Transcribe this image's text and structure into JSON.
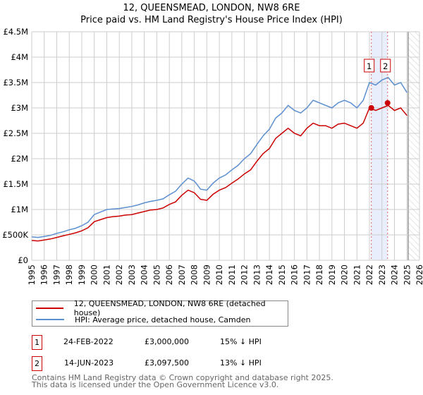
{
  "title_line1": "12, QUEENSMEAD, LONDON, NW8 6RE",
  "title_line2": "Price paid vs. HM Land Registry's House Price Index (HPI)",
  "colors": {
    "property": "#cc0000",
    "hpi": "#5b8fd0",
    "band": "#e8eefb",
    "marker": "#e06060"
  },
  "chart_data": {
    "type": "line",
    "title": "Price paid vs. HM Land Registry's House Price Index (HPI)",
    "xlim": [
      1995,
      2026
    ],
    "ylim": [
      0,
      4500000
    ],
    "y_ticks": [
      0,
      500000,
      1000000,
      1500000,
      2000000,
      2500000,
      3000000,
      3500000,
      4000000,
      4500000
    ],
    "y_tick_labels": [
      "£0",
      "£500K",
      "£1M",
      "£1.5M",
      "£2M",
      "£2.5M",
      "£3M",
      "£3.5M",
      "£4M",
      "£4.5M"
    ],
    "x_ticks": [
      1995,
      1996,
      1997,
      1998,
      1999,
      2000,
      2001,
      2002,
      2003,
      2004,
      2005,
      2006,
      2007,
      2008,
      2009,
      2010,
      2011,
      2012,
      2013,
      2014,
      2015,
      2016,
      2017,
      2018,
      2019,
      2020,
      2021,
      2022,
      2023,
      2024,
      2025,
      2026
    ],
    "grid": true,
    "x": [
      1995,
      1995.5,
      1996,
      1996.5,
      1997,
      1997.5,
      1998,
      1998.5,
      1999,
      1999.5,
      2000,
      2000.5,
      2001,
      2001.5,
      2002,
      2002.5,
      2003,
      2003.5,
      2004,
      2004.5,
      2005,
      2005.5,
      2006,
      2006.5,
      2007,
      2007.5,
      2008,
      2008.5,
      2009,
      2009.5,
      2010,
      2010.5,
      2011,
      2011.5,
      2012,
      2012.5,
      2013,
      2013.5,
      2014,
      2014.5,
      2015,
      2015.5,
      2016,
      2016.5,
      2017,
      2017.5,
      2018,
      2018.5,
      2019,
      2019.5,
      2020,
      2020.5,
      2021,
      2021.5,
      2022,
      2022.5,
      2023,
      2023.5,
      2024,
      2024.5,
      2025
    ],
    "series": [
      {
        "name": "12, QUEENSMEAD, LONDON, NW8 6RE (detached house)",
        "values": [
          390000,
          380000,
          400000,
          420000,
          450000,
          480000,
          510000,
          540000,
          580000,
          640000,
          760000,
          800000,
          840000,
          860000,
          870000,
          890000,
          900000,
          930000,
          960000,
          990000,
          1000000,
          1030000,
          1100000,
          1150000,
          1280000,
          1380000,
          1330000,
          1200000,
          1180000,
          1300000,
          1380000,
          1430000,
          1520000,
          1600000,
          1700000,
          1780000,
          1950000,
          2100000,
          2200000,
          2400000,
          2500000,
          2600000,
          2500000,
          2450000,
          2600000,
          2700000,
          2650000,
          2650000,
          2600000,
          2680000,
          2700000,
          2650000,
          2600000,
          2700000,
          3000000,
          2950000,
          3000000,
          3050000,
          2950000,
          3000000,
          2850000
        ]
      },
      {
        "name": "HPI: Average price, detached house, Camden",
        "values": [
          460000,
          450000,
          470000,
          490000,
          530000,
          560000,
          600000,
          630000,
          680000,
          750000,
          900000,
          950000,
          1000000,
          1010000,
          1020000,
          1040000,
          1060000,
          1090000,
          1130000,
          1160000,
          1180000,
          1210000,
          1290000,
          1360000,
          1500000,
          1620000,
          1560000,
          1400000,
          1380000,
          1520000,
          1620000,
          1680000,
          1780000,
          1870000,
          2000000,
          2100000,
          2280000,
          2450000,
          2580000,
          2800000,
          2900000,
          3050000,
          2950000,
          2900000,
          3000000,
          3150000,
          3100000,
          3050000,
          3000000,
          3100000,
          3150000,
          3100000,
          3000000,
          3150000,
          3500000,
          3450000,
          3550000,
          3600000,
          3450000,
          3500000,
          3300000
        ]
      }
    ],
    "annotations": [
      {
        "label": "1",
        "x": 2022.15,
        "y": 3000000
      },
      {
        "label": "2",
        "x": 2023.45,
        "y": 3097500
      }
    ],
    "shaded_band": [
      2022.15,
      2023.45
    ],
    "hatched_from": 2025.1
  },
  "legend": {
    "property": "12, QUEENSMEAD, LONDON, NW8 6RE (detached house)",
    "hpi": "HPI: Average price, detached house, Camden"
  },
  "transactions": [
    {
      "num": "1",
      "date": "24-FEB-2022",
      "price": "£3,000,000",
      "delta": "15% ↓ HPI"
    },
    {
      "num": "2",
      "date": "14-JUN-2023",
      "price": "£3,097,500",
      "delta": "13% ↓ HPI"
    }
  ],
  "footer": {
    "line1": "Contains HM Land Registry data © Crown copyright and database right 2025.",
    "line2": "This data is licensed under the Open Government Licence v3.0."
  }
}
